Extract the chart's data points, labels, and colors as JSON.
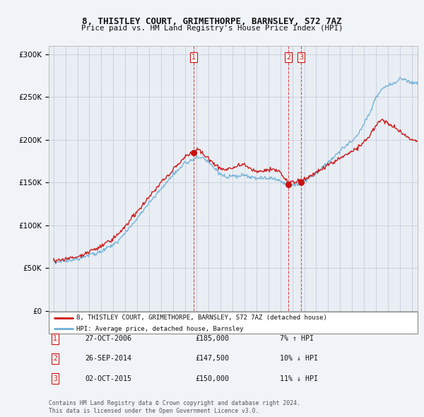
{
  "title": "8, THISTLEY COURT, GRIMETHORPE, BARNSLEY, S72 7AZ",
  "subtitle": "Price paid vs. HM Land Registry's House Price Index (HPI)",
  "legend_label_red": "8, THISTLEY COURT, GRIMETHORPE, BARNSLEY, S72 7AZ (detached house)",
  "legend_label_blue": "HPI: Average price, detached house, Barnsley",
  "transactions": [
    {
      "num": 1,
      "date": "27-OCT-2006",
      "price": 185000,
      "pct": "7%",
      "dir": "↑"
    },
    {
      "num": 2,
      "date": "26-SEP-2014",
      "price": 147500,
      "pct": "10%",
      "dir": "↓"
    },
    {
      "num": 3,
      "date": "02-OCT-2015",
      "price": 150000,
      "pct": "11%",
      "dir": "↓"
    }
  ],
  "footer": "Contains HM Land Registry data © Crown copyright and database right 2024.\nThis data is licensed under the Open Government Licence v3.0.",
  "ylim": [
    0,
    310000
  ],
  "yticks": [
    0,
    50000,
    100000,
    150000,
    200000,
    250000,
    300000
  ],
  "background_color": "#f0f4f8",
  "plot_bg_color": "#e8eef4"
}
